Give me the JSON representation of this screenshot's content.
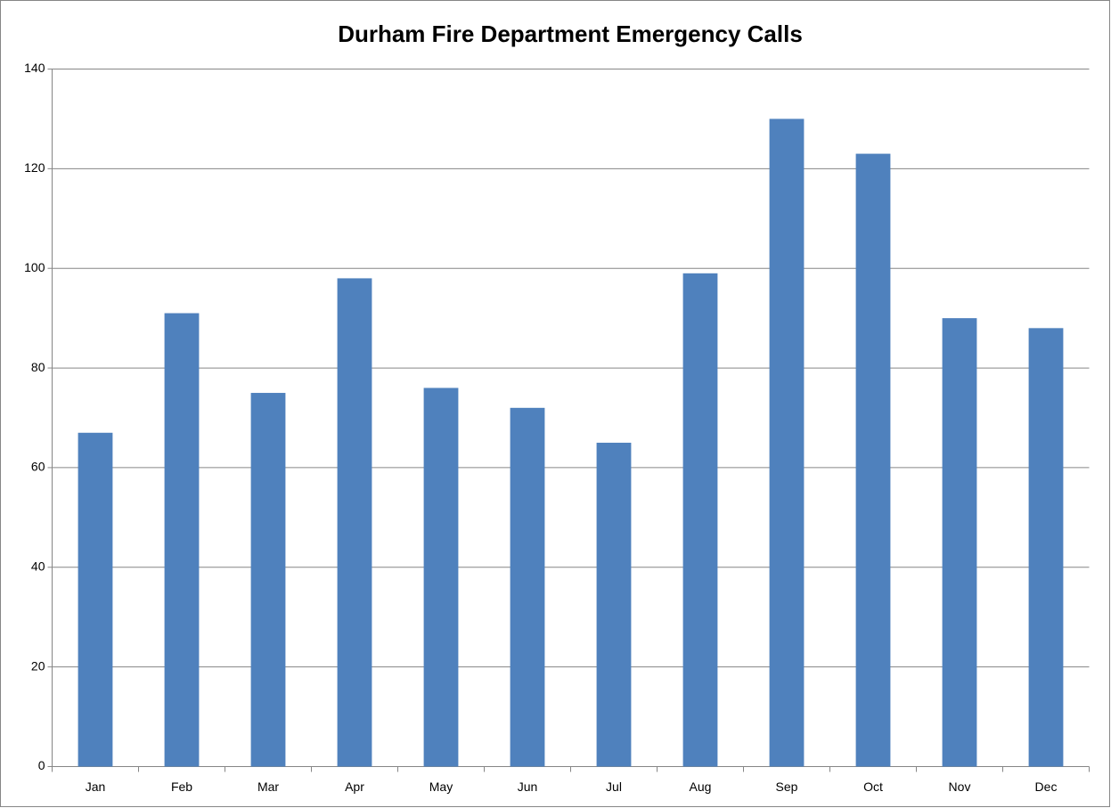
{
  "chart_data": {
    "type": "bar",
    "title": "Durham Fire Department Emergency Calls",
    "categories": [
      "Jan",
      "Feb",
      "Mar",
      "Apr",
      "May",
      "Jun",
      "Jul",
      "Aug",
      "Sep",
      "Oct",
      "Nov",
      "Dec"
    ],
    "values": [
      67,
      91,
      75,
      98,
      76,
      72,
      65,
      99,
      130,
      123,
      90,
      88
    ],
    "color": "#4f81bd",
    "ylim": [
      0,
      140
    ],
    "yticks": [
      0,
      20,
      40,
      60,
      80,
      100,
      120,
      140
    ],
    "grid": true
  }
}
